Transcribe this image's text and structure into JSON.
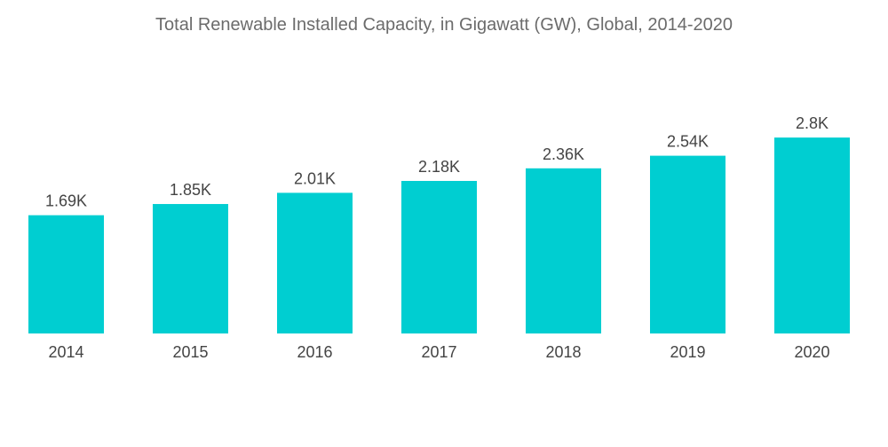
{
  "chart_data": {
    "type": "bar",
    "title": "Total Renewable Installed Capacity, in Gigawatt (GW), Global, 2014-2020",
    "xlabel": "",
    "ylabel": "",
    "categories": [
      "2014",
      "2015",
      "2016",
      "2017",
      "2018",
      "2019",
      "2020"
    ],
    "values": [
      1690,
      1850,
      2010,
      2180,
      2360,
      2540,
      2800
    ],
    "value_labels": [
      "1.69K",
      "1.85K",
      "2.01K",
      "2.18K",
      "2.36K",
      "2.54K",
      "2.8K"
    ],
    "ylim": [
      0,
      3000
    ],
    "grid": false,
    "legend": "none",
    "colors": {
      "bar": "#00CED1",
      "text": "#444444",
      "title": "#6b6b6b"
    }
  }
}
